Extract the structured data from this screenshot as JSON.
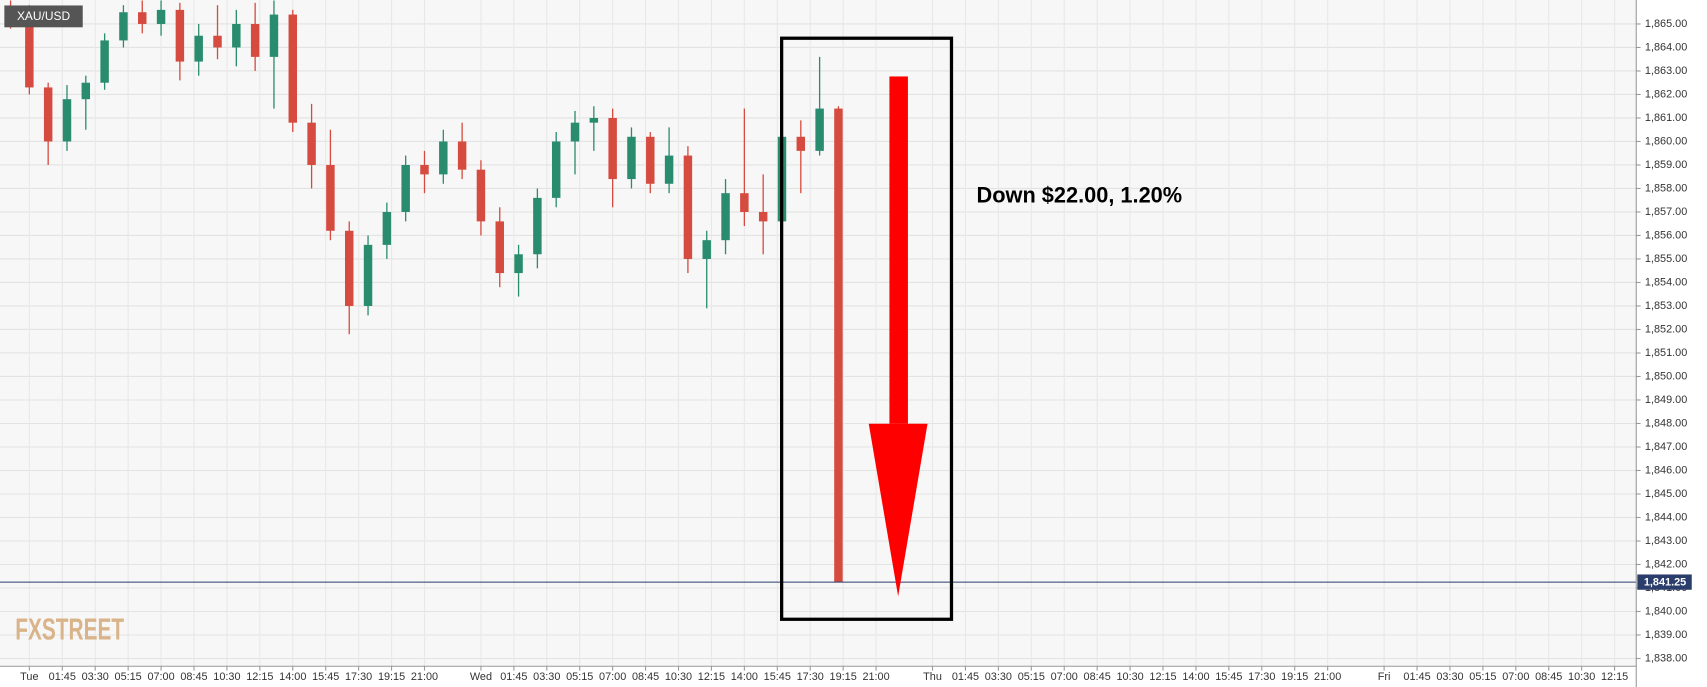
{
  "chart_data": {
    "type": "candlestick",
    "instrument": "XAU/USD",
    "annotation": "Down $22.00, 1.20%",
    "watermark": "FXSTREET",
    "up_color": "#2a8c6e",
    "down_color": "#d64b3f",
    "grid": true,
    "x": [
      -1,
      0,
      1,
      2,
      3,
      4,
      5,
      6,
      7,
      8,
      9,
      10,
      11,
      12,
      13,
      14,
      15,
      16,
      17,
      18,
      19,
      20,
      21,
      22,
      23,
      24,
      25,
      26,
      27,
      28,
      29,
      30,
      31,
      32,
      33,
      34,
      35,
      36,
      37,
      38,
      39,
      40,
      41,
      42,
      43
    ],
    "open": [
      1865.5,
      1865.2,
      1862.3,
      1860.0,
      1861.8,
      1862.5,
      1864.3,
      1865.5,
      1865.0,
      1865.6,
      1863.4,
      1864.5,
      1864.0,
      1865.0,
      1863.6,
      1865.4,
      1860.8,
      1859.0,
      1856.2,
      1853.0,
      1855.6,
      1857.0,
      1859.0,
      1858.6,
      1860.0,
      1858.8,
      1856.6,
      1854.4,
      1855.2,
      1857.6,
      1860.0,
      1860.8,
      1861.0,
      1858.4,
      1860.2,
      1858.2,
      1859.4,
      1855.0,
      1855.8,
      1857.8,
      1857.0,
      1856.6,
      1860.2,
      1859.6,
      1861.4
    ],
    "high": [
      1866.0,
      1865.8,
      1862.5,
      1862.4,
      1862.8,
      1864.6,
      1865.8,
      1866.0,
      1866.0,
      1865.9,
      1865.0,
      1865.8,
      1865.6,
      1865.9,
      1866.0,
      1865.6,
      1861.6,
      1860.5,
      1856.6,
      1856.0,
      1857.4,
      1859.4,
      1859.6,
      1860.5,
      1860.8,
      1859.2,
      1857.2,
      1855.6,
      1858.0,
      1860.4,
      1861.3,
      1861.5,
      1861.4,
      1860.6,
      1860.4,
      1860.6,
      1859.8,
      1856.2,
      1858.4,
      1861.4,
      1858.6,
      1860.8,
      1860.9,
      1863.6,
      1861.5
    ],
    "low": [
      1864.8,
      1862.0,
      1859.0,
      1859.6,
      1860.5,
      1862.2,
      1864.0,
      1864.6,
      1864.5,
      1862.6,
      1862.8,
      1863.5,
      1863.2,
      1863.0,
      1861.4,
      1860.4,
      1858.0,
      1855.8,
      1851.8,
      1852.6,
      1855.0,
      1856.6,
      1857.8,
      1858.2,
      1858.4,
      1856.0,
      1853.8,
      1853.4,
      1854.6,
      1857.2,
      1858.6,
      1859.6,
      1857.2,
      1858.0,
      1857.8,
      1857.8,
      1854.4,
      1852.9,
      1855.2,
      1856.4,
      1855.2,
      1856.2,
      1857.8,
      1859.4,
      1841.25
    ],
    "close": [
      1865.2,
      1862.3,
      1860.0,
      1861.8,
      1862.5,
      1864.3,
      1865.5,
      1865.0,
      1865.6,
      1863.4,
      1864.5,
      1864.0,
      1865.0,
      1863.6,
      1865.4,
      1860.8,
      1859.0,
      1856.2,
      1853.0,
      1855.6,
      1857.0,
      1859.0,
      1858.6,
      1860.0,
      1858.8,
      1856.6,
      1854.4,
      1855.2,
      1857.6,
      1860.0,
      1860.8,
      1861.0,
      1858.4,
      1860.2,
      1858.2,
      1859.4,
      1855.0,
      1855.8,
      1857.8,
      1857.0,
      1856.6,
      1860.2,
      1859.6,
      1861.4,
      1841.25
    ],
    "last_price": {
      "value": 1841.25,
      "label": "1,841.25"
    },
    "xlim": [
      -1.56,
      85.4
    ],
    "ylim": [
      1837.67,
      1866.02
    ],
    "xticks": [
      {
        "value": 0,
        "label": "Tue"
      },
      {
        "value": 1.75,
        "label": "01:45"
      },
      {
        "value": 3.5,
        "label": "03:30"
      },
      {
        "value": 5.25,
        "label": "05:15"
      },
      {
        "value": 7,
        "label": "07:00"
      },
      {
        "value": 8.75,
        "label": "08:45"
      },
      {
        "value": 10.5,
        "label": "10:30"
      },
      {
        "value": 12.25,
        "label": "12:15"
      },
      {
        "value": 14,
        "label": "14:00"
      },
      {
        "value": 15.75,
        "label": "15:45"
      },
      {
        "value": 17.5,
        "label": "17:30"
      },
      {
        "value": 19.25,
        "label": "19:15"
      },
      {
        "value": 21,
        "label": "21:00"
      },
      {
        "value": 24,
        "label": "Wed"
      },
      {
        "value": 25.75,
        "label": "01:45"
      },
      {
        "value": 27.5,
        "label": "03:30"
      },
      {
        "value": 29.25,
        "label": "05:15"
      },
      {
        "value": 31,
        "label": "07:00"
      },
      {
        "value": 32.75,
        "label": "08:45"
      },
      {
        "value": 34.5,
        "label": "10:30"
      },
      {
        "value": 36.25,
        "label": "12:15"
      },
      {
        "value": 38,
        "label": "14:00"
      },
      {
        "value": 39.75,
        "label": "15:45"
      },
      {
        "value": 41.5,
        "label": "17:30"
      },
      {
        "value": 43.25,
        "label": "19:15"
      },
      {
        "value": 45,
        "label": "21:00"
      },
      {
        "value": 48,
        "label": "Thu"
      },
      {
        "value": 49.75,
        "label": "01:45"
      },
      {
        "value": 51.5,
        "label": "03:30"
      },
      {
        "value": 53.25,
        "label": "05:15"
      },
      {
        "value": 55,
        "label": "07:00"
      },
      {
        "value": 56.75,
        "label": "08:45"
      },
      {
        "value": 58.5,
        "label": "10:30"
      },
      {
        "value": 60.25,
        "label": "12:15"
      },
      {
        "value": 62,
        "label": "14:00"
      },
      {
        "value": 63.75,
        "label": "15:45"
      },
      {
        "value": 65.5,
        "label": "17:30"
      },
      {
        "value": 67.25,
        "label": "19:15"
      },
      {
        "value": 69,
        "label": "21:00"
      },
      {
        "value": 72,
        "label": "Fri"
      },
      {
        "value": 73.75,
        "label": "01:45"
      },
      {
        "value": 75.5,
        "label": "03:30"
      },
      {
        "value": 77.25,
        "label": "05:15"
      },
      {
        "value": 79,
        "label": "07:00"
      },
      {
        "value": 80.75,
        "label": "08:45"
      },
      {
        "value": 82.5,
        "label": "10:30"
      },
      {
        "value": 84.25,
        "label": "12:15"
      }
    ],
    "yticks": [
      {
        "value": 1838,
        "label": "1,838.00"
      },
      {
        "value": 1839,
        "label": "1,839.00"
      },
      {
        "value": 1840,
        "label": "1,840.00"
      },
      {
        "value": 1841,
        "label": "1,841.00"
      },
      {
        "value": 1842,
        "label": "1,842.00"
      },
      {
        "value": 1843,
        "label": "1,843.00"
      },
      {
        "value": 1844,
        "label": "1,844.00"
      },
      {
        "value": 1845,
        "label": "1,845.00"
      },
      {
        "value": 1846,
        "label": "1,846.00"
      },
      {
        "value": 1847,
        "label": "1,847.00"
      },
      {
        "value": 1848,
        "label": "1,848.00"
      },
      {
        "value": 1849,
        "label": "1,849.00"
      },
      {
        "value": 1850,
        "label": "1,850.00"
      },
      {
        "value": 1851,
        "label": "1,851.00"
      },
      {
        "value": 1852,
        "label": "1,852.00"
      },
      {
        "value": 1853,
        "label": "1,853.00"
      },
      {
        "value": 1854,
        "label": "1,854.00"
      },
      {
        "value": 1855,
        "label": "1,855.00"
      },
      {
        "value": 1856,
        "label": "1,856.00"
      },
      {
        "value": 1857,
        "label": "1,857.00"
      },
      {
        "value": 1858,
        "label": "1,858.00"
      },
      {
        "value": 1859,
        "label": "1,859.00"
      },
      {
        "value": 1860,
        "label": "1,860.00"
      },
      {
        "value": 1861,
        "label": "1,861.00"
      },
      {
        "value": 1862,
        "label": "1,862.00"
      },
      {
        "value": 1863,
        "label": "1,863.00"
      },
      {
        "value": 1864,
        "label": "1,864.00"
      },
      {
        "value": 1865,
        "label": "1,865.00"
      }
    ]
  }
}
